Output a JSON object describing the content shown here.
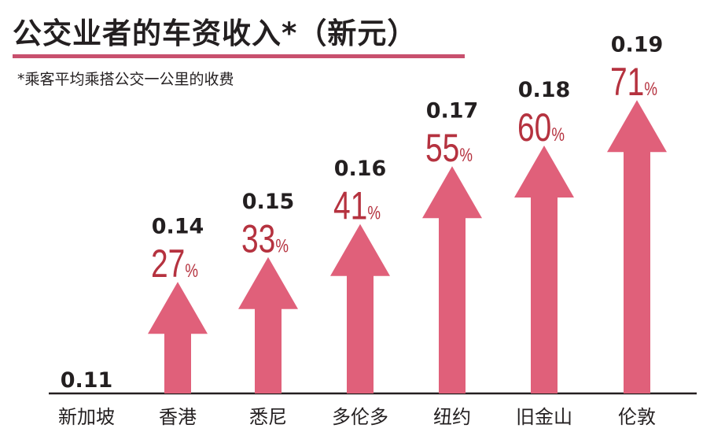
{
  "chart_data": {
    "type": "bar",
    "title": "公交业者的车资收入*（新元）",
    "subtitle": "*乘客平均乘搭公交一公里的收费",
    "categories": [
      "新加坡",
      "香港",
      "悉尼",
      "多伦多",
      "纽约",
      "旧金山",
      "伦敦"
    ],
    "values": [
      0.11,
      0.14,
      0.15,
      0.16,
      0.17,
      0.18,
      0.19
    ],
    "value_labels": [
      "0.11",
      "0.14",
      "0.15",
      "0.16",
      "0.17",
      "0.18",
      "0.19"
    ],
    "percent_above_singapore": [
      null,
      27,
      33,
      41,
      55,
      60,
      71
    ],
    "percent_labels": [
      "",
      "27",
      "33",
      "41",
      "55",
      "60",
      "71"
    ],
    "percent_sign": "%",
    "mark": "arrow",
    "colors": {
      "arrow": "#e0607a",
      "percent": "#b5323f",
      "value": "#231f20",
      "rule": "#c8506e"
    }
  }
}
